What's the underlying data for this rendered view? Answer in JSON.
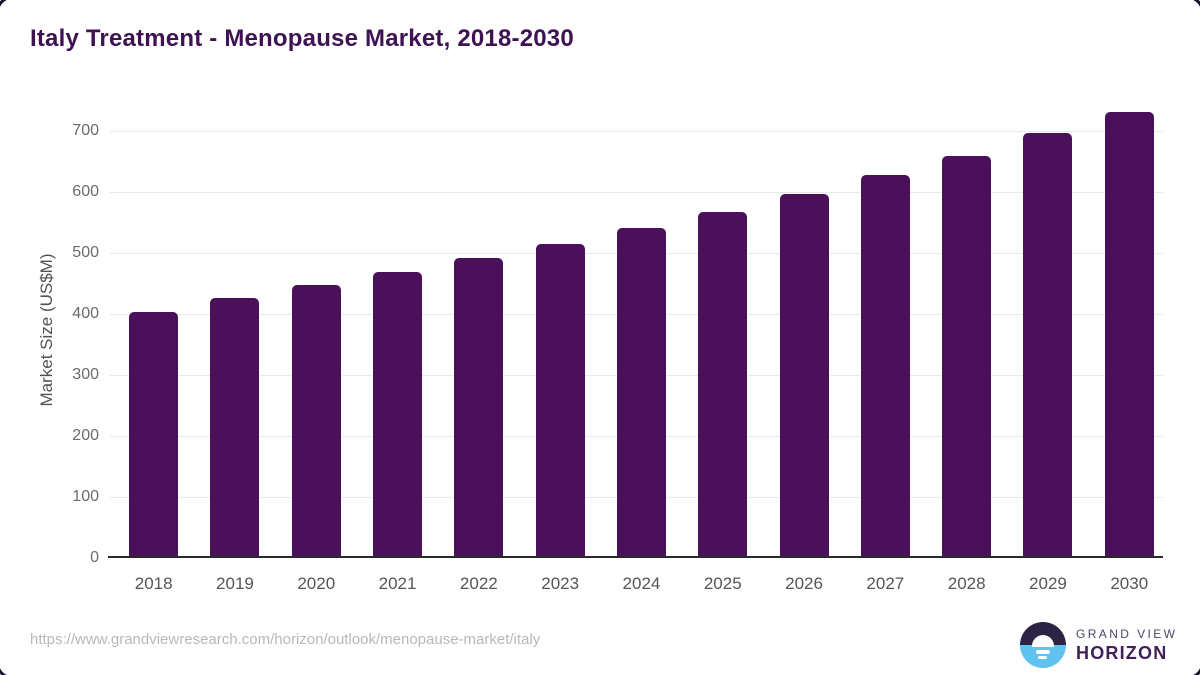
{
  "title": "Italy Treatment - Menopause Market, 2018-2030",
  "source_url": "https://www.grandviewresearch.com/horizon/outlook/menopause-market/italy",
  "logo": {
    "top": "GRAND VIEW",
    "bottom": "HORIZON"
  },
  "colors": {
    "bar": "#4a1059",
    "title": "#3f1253",
    "logo_dark": "#2c2345",
    "logo_blue": "#60c2ef",
    "logo_text": "#4c4565",
    "logo_horizon": "#3f2059"
  },
  "chart_data": {
    "type": "bar",
    "title": "Italy Treatment - Menopause Market, 2018-2030",
    "xlabel": "",
    "ylabel": "Market Size (US$M)",
    "categories": [
      "2018",
      "2019",
      "2020",
      "2021",
      "2022",
      "2023",
      "2024",
      "2025",
      "2026",
      "2027",
      "2028",
      "2029",
      "2030"
    ],
    "values": [
      403,
      426,
      447,
      469,
      491,
      515,
      541,
      567,
      597,
      627,
      659,
      696,
      732
    ],
    "ylim": [
      0,
      750
    ],
    "yticks": [
      0,
      100,
      200,
      300,
      400,
      500,
      600,
      700
    ],
    "grid": true,
    "legend": "none"
  }
}
